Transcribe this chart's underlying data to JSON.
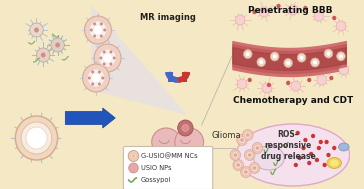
{
  "bg_color": "#f5e8c4",
  "colors": {
    "triangle_bg": "#dce8f0",
    "triangle_edge": "#c8dce8",
    "arrow_blue": "#2255bb",
    "arrow_edge": "#1a3d99",
    "cell_outer": "#e8b898",
    "cell_mid": "#f0d8c8",
    "cell_inner": "#f8efea",
    "cell_core": "#f5e8e0",
    "np_pink": "#d08888",
    "np_dot": "#c07070",
    "spike_blue": "#90b8d0",
    "spike_green": "#98c898",
    "macrophage_body": "#e8d0c0",
    "macrophage_edge": "#c8a888",
    "magnet_red": "#cc3333",
    "magnet_blue": "#4466cc",
    "brain_pink": "#e8b8b8",
    "brain_edge": "#c89090",
    "brain_fold": "#c09090",
    "tumor_red": "#c07070",
    "vessel_outer": "#d87070",
    "vessel_inner": "#c05050",
    "vessel_core": "#a03030",
    "astro_pink": "#f0c0c0",
    "astro_edge": "#e0a0a0",
    "astro_spike": "#e8b0b0",
    "np_vessel_outer": "#f0d0c0",
    "np_vessel_inner": "#e0b0a0",
    "cell_big_face": "#f8e8f0",
    "cell_big_edge": "#e0a8c0",
    "nuc_face": "#eedce8",
    "nuc_edge": "#c8a0b8",
    "ros_red": "#cc4444",
    "gossypol_green": "#70a870",
    "org_yellow": "#f0d060",
    "org_blue": "#a0b8d8",
    "legend_bg": "#ffffff",
    "legend_edge": "#ccbbbb",
    "text_dark": "#333333",
    "text_black": "#111111",
    "line_gray": "#999999"
  },
  "labels": {
    "mr_imaging": "MR imaging",
    "glioma": "Glioma",
    "penetrating_bbb": "Penetrating BBB",
    "chemotherapy": "Chemotherapy and CDT",
    "ros": "ROS-\nresponsive\ndrug release"
  },
  "legend_items": [
    {
      "label": "G-USIO@MM NCs"
    },
    {
      "label": "USIO NPs"
    },
    {
      "label": "Gossypol"
    }
  ]
}
